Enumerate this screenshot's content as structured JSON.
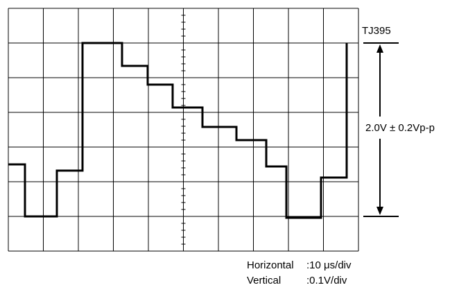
{
  "diagram": {
    "waveform_tag": "TJ395",
    "amplitude_label": "2.0V ± 0.2Vp-p",
    "horizontal_label": "Horizontal",
    "horizontal_value": ":10 μs/div",
    "vertical_label": "Vertical",
    "vertical_value": ":0.1V/div",
    "divisions": {
      "horizontal": 10,
      "vertical": 7
    },
    "trace_color": "#000000",
    "grid_color": "#000000"
  }
}
